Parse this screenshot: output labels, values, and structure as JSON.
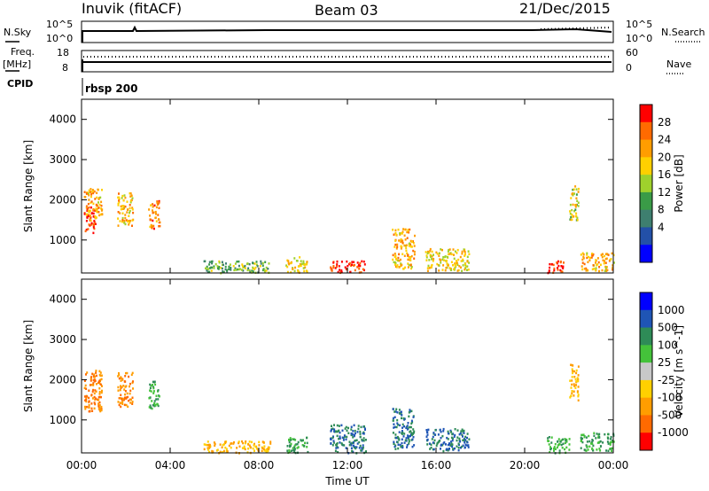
{
  "header": {
    "radar": "Inuvik (fitACF)",
    "beam": "Beam 03",
    "date": "21/Dec/2015"
  },
  "top_panels": {
    "nsky_label": "N.Sky",
    "nsky_ticks": [
      "10^5",
      "10^0"
    ],
    "nsearch_label": "N.Search",
    "nsearch_ticks": [
      "10^5",
      "10^0"
    ],
    "freq_label": "Freq.",
    "freq_unit": "[MHz]",
    "freq_ticks": [
      "18",
      "8"
    ],
    "nave_label": "Nave",
    "nave_ticks": [
      "60",
      "0"
    ],
    "cpid_label": "CPID",
    "cpid_value": "rbsp 200"
  },
  "x_axis": {
    "title": "Time UT",
    "ticks": [
      "00:00",
      "04:00",
      "08:00",
      "12:00",
      "16:00",
      "20:00",
      "00:00"
    ]
  },
  "power_panel": {
    "ylabel": "Slant Range [km]",
    "yticks": [
      "4000",
      "3000",
      "2000",
      "1000"
    ],
    "colorbar_label": "Power [dB]",
    "colorbar_ticks": [
      "28",
      "24",
      "20",
      "16",
      "12",
      "8",
      "4"
    ],
    "colors": [
      "#ff0000",
      "#ff6a00",
      "#ff9d00",
      "#ffd000",
      "#9fd12c",
      "#3a9b47",
      "#3e7f6f",
      "#2350a8",
      "#0000ff"
    ]
  },
  "velocity_panel": {
    "ylabel": "Slant Range [km]",
    "yticks": [
      "4000",
      "3000",
      "2000",
      "1000"
    ],
    "colorbar_label": "Velocity [m s^-1]",
    "colorbar_ticks": [
      "1000",
      "500",
      "100",
      "25",
      "-25",
      "-100",
      "-500",
      "-1000"
    ],
    "colors": [
      "#0000ff",
      "#1f55b5",
      "#2e8b57",
      "#44c23a",
      "#c8c8c8",
      "#ffd000",
      "#ff9d00",
      "#ff6a00",
      "#ff0000"
    ]
  },
  "chart_data": {
    "type": "heatmap",
    "x_range_hours": [
      0,
      24
    ],
    "y_range_km": [
      180,
      4500
    ],
    "power_regions": [
      {
        "t0": 0.1,
        "t1": 0.6,
        "r0": 1200,
        "r1": 1900,
        "power": 28
      },
      {
        "t0": 0.1,
        "t1": 0.9,
        "r0": 1500,
        "r1": 2300,
        "power": 20
      },
      {
        "t0": 1.6,
        "t1": 2.3,
        "r0": 1350,
        "r1": 2200,
        "power": 20
      },
      {
        "t0": 3.0,
        "t1": 3.5,
        "r0": 1300,
        "r1": 2000,
        "power": 22
      },
      {
        "t0": 5.5,
        "t1": 8.5,
        "r0": 200,
        "r1": 500,
        "power": 12
      },
      {
        "t0": 9.2,
        "t1": 10.2,
        "r0": 200,
        "r1": 600,
        "power": 18
      },
      {
        "t0": 11.2,
        "t1": 12.8,
        "r0": 200,
        "r1": 500,
        "power": 28
      },
      {
        "t0": 14.0,
        "t1": 15.0,
        "r0": 300,
        "r1": 1300,
        "power": 20
      },
      {
        "t0": 15.5,
        "t1": 17.5,
        "r0": 250,
        "r1": 800,
        "power": 18
      },
      {
        "t0": 21.0,
        "t1": 21.8,
        "r0": 200,
        "r1": 500,
        "power": 28
      },
      {
        "t0": 22.5,
        "t1": 24.0,
        "r0": 250,
        "r1": 700,
        "power": 20
      },
      {
        "t0": 22.0,
        "t1": 22.4,
        "r0": 1500,
        "r1": 2400,
        "power": 16
      }
    ],
    "velocity_regions": [
      {
        "t0": 0.1,
        "t1": 0.9,
        "r0": 1200,
        "r1": 2300,
        "velocity": -500
      },
      {
        "t0": 1.6,
        "t1": 2.3,
        "r0": 1350,
        "r1": 2200,
        "velocity": -500
      },
      {
        "t0": 3.0,
        "t1": 3.5,
        "r0": 1300,
        "r1": 2000,
        "velocity": 100
      },
      {
        "t0": 5.5,
        "t1": 8.5,
        "r0": 200,
        "r1": 500,
        "velocity": -100
      },
      {
        "t0": 9.2,
        "t1": 10.2,
        "r0": 200,
        "r1": 600,
        "velocity": 100
      },
      {
        "t0": 11.2,
        "t1": 12.8,
        "r0": 200,
        "r1": 900,
        "velocity": 500
      },
      {
        "t0": 14.0,
        "t1": 15.0,
        "r0": 300,
        "r1": 1300,
        "velocity": 500
      },
      {
        "t0": 15.5,
        "t1": 17.5,
        "r0": 250,
        "r1": 800,
        "velocity": 500
      },
      {
        "t0": 21.0,
        "t1": 22.0,
        "r0": 200,
        "r1": 600,
        "velocity": 100
      },
      {
        "t0": 22.5,
        "t1": 24.0,
        "r0": 250,
        "r1": 700,
        "velocity": 100
      },
      {
        "t0": 22.0,
        "t1": 22.4,
        "r0": 1500,
        "r1": 2400,
        "velocity": -100
      }
    ]
  }
}
